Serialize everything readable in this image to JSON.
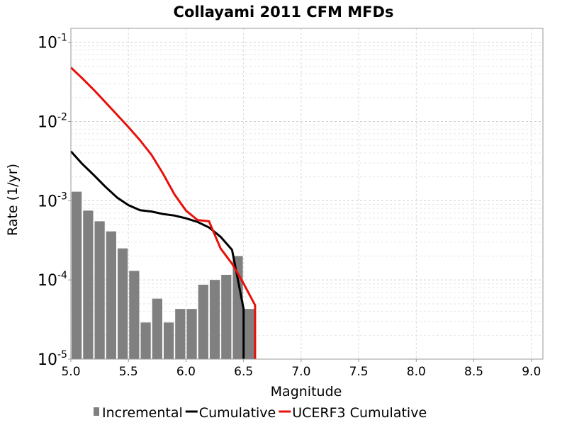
{
  "chart_data": {
    "type": "bar",
    "title": "Collayami 2011 CFM MFDs",
    "xlabel": "Magnitude",
    "ylabel": "Rate (1/yr)",
    "xlim": [
      5.0,
      9.1
    ],
    "ylim": [
      1e-05,
      0.15
    ],
    "yscale": "log",
    "grid": true,
    "legend_position": "bottom",
    "x_ticks": [
      "5.0",
      "5.5",
      "6.0",
      "6.5",
      "7.0",
      "7.5",
      "8.0",
      "8.5",
      "9.0"
    ],
    "y_ticks": [
      {
        "base": "10",
        "exp": "-1",
        "value": 0.1
      },
      {
        "base": "10",
        "exp": "-2",
        "value": 0.01
      },
      {
        "base": "10",
        "exp": "-3",
        "value": 0.001
      },
      {
        "base": "10",
        "exp": "-4",
        "value": 0.0001
      },
      {
        "base": "10",
        "exp": "-5",
        "value": 1e-05
      }
    ],
    "series": [
      {
        "name": "Incremental",
        "type": "bar",
        "color": "#808080",
        "x": [
          5.0,
          5.1,
          5.2,
          5.3,
          5.4,
          5.5,
          5.6,
          5.7,
          5.8,
          5.9,
          6.0,
          6.1,
          6.2,
          6.3,
          6.4,
          6.5
        ],
        "values": [
          0.0013,
          0.00075,
          0.00055,
          0.00041,
          0.00025,
          0.00013,
          2.9e-05,
          5.8e-05,
          2.9e-05,
          4.3e-05,
          4.3e-05,
          8.7e-05,
          0.0001,
          0.000116,
          0.0002,
          4.3e-05
        ]
      },
      {
        "name": "Cumulative",
        "type": "line",
        "color": "#000000",
        "x": [
          5.0,
          5.1,
          5.2,
          5.3,
          5.4,
          5.5,
          5.6,
          5.7,
          5.8,
          5.9,
          6.0,
          6.1,
          6.2,
          6.3,
          6.4,
          6.5,
          6.5
        ],
        "values": [
          0.0042,
          0.0029,
          0.0021,
          0.0015,
          0.0011,
          0.00088,
          0.00076,
          0.00073,
          0.00068,
          0.00065,
          0.0006,
          0.00054,
          0.00046,
          0.00035,
          0.00024,
          4.3e-05,
          1e-05
        ]
      },
      {
        "name": "UCERF3 Cumulative",
        "type": "line",
        "color": "#e8100a",
        "x": [
          5.0,
          5.1,
          5.2,
          5.3,
          5.4,
          5.5,
          5.6,
          5.7,
          5.8,
          5.9,
          6.0,
          6.1,
          6.2,
          6.3,
          6.4,
          6.5,
          6.6,
          6.6
        ],
        "values": [
          0.048,
          0.035,
          0.025,
          0.0175,
          0.0122,
          0.0085,
          0.0058,
          0.0038,
          0.0022,
          0.0012,
          0.00075,
          0.00057,
          0.00055,
          0.00025,
          0.00016,
          9e-05,
          4.8e-05,
          1e-05
        ]
      }
    ]
  }
}
